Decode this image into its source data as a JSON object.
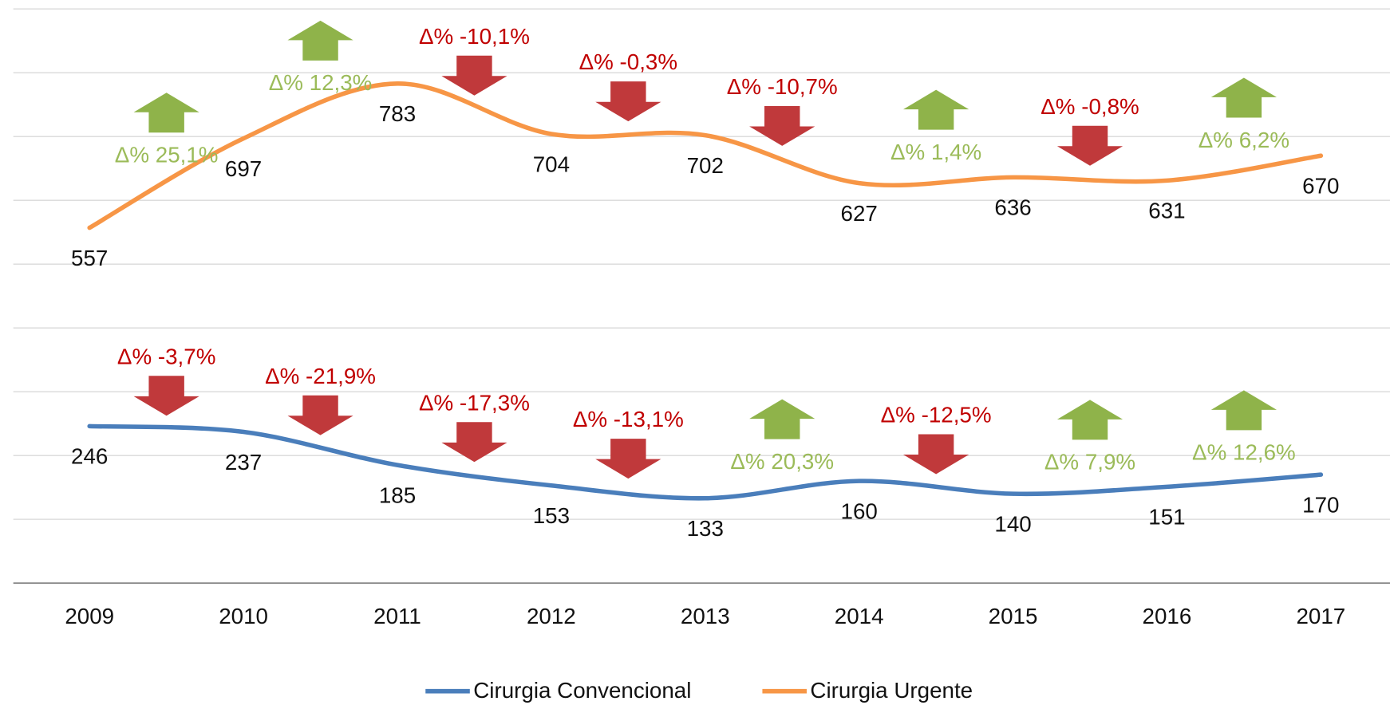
{
  "chart_data": {
    "type": "line",
    "categories": [
      "2009",
      "2010",
      "2011",
      "2012",
      "2013",
      "2014",
      "2015",
      "2016",
      "2017"
    ],
    "series": [
      {
        "name": "Cirurgia Convencional",
        "color": "#4a7ebb",
        "values": [
          246,
          237,
          185,
          153,
          133,
          160,
          140,
          151,
          170
        ],
        "changes": [
          "Δ% -3,7%",
          "Δ% -21,9%",
          "Δ% -17,3%",
          "Δ% -13,1%",
          "Δ% 20,3%",
          "Δ% -12,5%",
          "Δ% 7,9%",
          "Δ% 12,6%"
        ]
      },
      {
        "name": "Cirurgia Urgente",
        "color": "#f79646",
        "values": [
          557,
          697,
          783,
          704,
          702,
          627,
          636,
          631,
          670
        ],
        "changes": [
          "Δ% 25,1%",
          "Δ% 12,3%",
          "Δ% -10,1%",
          "Δ% -0,3%",
          "Δ% -10,7%",
          "Δ% 1,4%",
          "Δ% -0,8%",
          "Δ% 6,2%"
        ]
      }
    ],
    "ylim": [
      0,
      900
    ],
    "yticks": [
      0,
      100,
      200,
      300,
      400,
      500,
      600,
      700,
      800,
      900
    ],
    "grid": true,
    "legend": "bottom",
    "up_color": "#8fb34a",
    "up_text_color": "#9bbb59",
    "down_color": "#c0393b",
    "down_text_color": "#c00000"
  }
}
